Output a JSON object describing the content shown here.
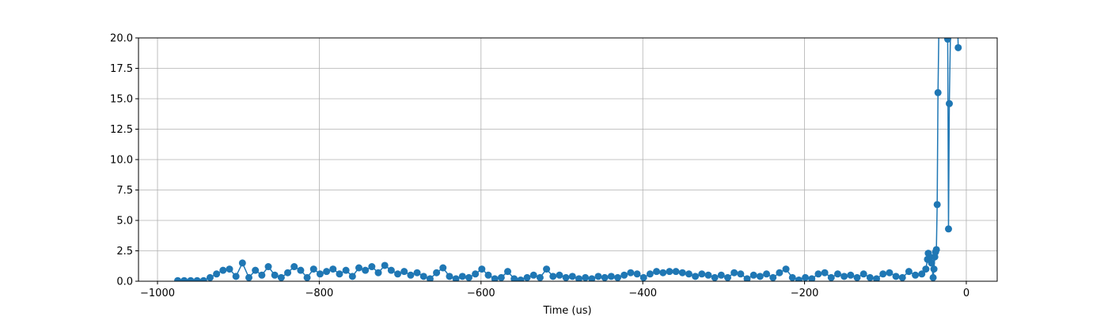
{
  "chart_data": {
    "type": "line",
    "xlabel": "Time (us)",
    "x": [
      -975,
      -967,
      -959,
      -951,
      -943,
      -935,
      -927,
      -919,
      -911,
      -903,
      -895,
      -887,
      -879,
      -871,
      -863,
      -855,
      -847,
      -839,
      -831,
      -823,
      -815,
      -807,
      -799,
      -791,
      -783,
      -775,
      -767,
      -759,
      -751,
      -743,
      -735,
      -727,
      -719,
      -711,
      -703,
      -695,
      -687,
      -679,
      -671,
      -663,
      -655,
      -647,
      -639,
      -631,
      -623,
      -615,
      -607,
      -599,
      -591,
      -583,
      -575,
      -567,
      -559,
      -551,
      -543,
      -535,
      -527,
      -519,
      -511,
      -503,
      -495,
      -487,
      -479,
      -471,
      -463,
      -455,
      -447,
      -439,
      -431,
      -423,
      -415,
      -407,
      -399,
      -391,
      -383,
      -375,
      -367,
      -359,
      -351,
      -343,
      -335,
      -327,
      -319,
      -311,
      -303,
      -295,
      -287,
      -279,
      -271,
      -263,
      -255,
      -247,
      -239,
      -231,
      -223,
      -215,
      -207,
      -199,
      -191,
      -183,
      -175,
      -167,
      -159,
      -151,
      -143,
      -135,
      -127,
      -119,
      -111,
      -103,
      -95,
      -87,
      -79,
      -71,
      -63,
      -55,
      -50,
      -48,
      -47,
      -45,
      -43,
      -41,
      -40,
      -39,
      -38,
      -37,
      -36,
      -35,
      -31,
      -23,
      -22,
      -21,
      -16,
      -10
    ],
    "series": [
      {
        "color": "#1f77b4",
        "values": [
          0.05,
          0.05,
          0.05,
          0.05,
          0.05,
          0.3,
          0.6,
          0.9,
          1.0,
          0.4,
          1.5,
          0.3,
          0.9,
          0.5,
          1.2,
          0.5,
          0.3,
          0.7,
          1.2,
          0.9,
          0.3,
          1.0,
          0.6,
          0.8,
          1.0,
          0.6,
          0.9,
          0.4,
          1.1,
          0.9,
          1.2,
          0.7,
          1.3,
          0.9,
          0.6,
          0.8,
          0.5,
          0.7,
          0.4,
          0.2,
          0.7,
          1.1,
          0.4,
          0.2,
          0.4,
          0.3,
          0.6,
          1.0,
          0.5,
          0.2,
          0.3,
          0.8,
          0.2,
          0.1,
          0.3,
          0.5,
          0.3,
          1.0,
          0.4,
          0.5,
          0.3,
          0.4,
          0.2,
          0.3,
          0.2,
          0.4,
          0.3,
          0.4,
          0.3,
          0.5,
          0.7,
          0.6,
          0.3,
          0.6,
          0.8,
          0.7,
          0.8,
          0.8,
          0.7,
          0.6,
          0.4,
          0.6,
          0.5,
          0.3,
          0.5,
          0.3,
          0.7,
          0.6,
          0.2,
          0.5,
          0.4,
          0.6,
          0.3,
          0.7,
          1.0,
          0.3,
          0.1,
          0.3,
          0.2,
          0.6,
          0.7,
          0.3,
          0.6,
          0.4,
          0.5,
          0.3,
          0.6,
          0.3,
          0.2,
          0.6,
          0.7,
          0.4,
          0.3,
          0.8,
          0.5,
          0.6,
          1.0,
          1.8,
          2.3,
          2.0,
          1.5,
          0.3,
          1.0,
          2.0,
          2.4,
          2.6,
          6.3,
          15.5,
          35,
          19.9,
          4.3,
          14.6,
          35,
          19.2
        ]
      }
    ],
    "xlim": [
      -1023.5,
      38.2
    ],
    "ylim": [
      0,
      20
    ],
    "xticks": [
      {
        "value": -1000,
        "label": "−1000"
      },
      {
        "value": -800,
        "label": "−800"
      },
      {
        "value": -600,
        "label": "−600"
      },
      {
        "value": -400,
        "label": "−400"
      },
      {
        "value": -200,
        "label": "−200"
      },
      0
    ],
    "yticks": [
      {
        "value": 0,
        "label": "0.0"
      },
      2.5,
      {
        "value": 5,
        "label": "5.0"
      },
      7.5,
      {
        "value": 10,
        "label": "10.0"
      },
      12.5,
      {
        "value": 15,
        "label": "15.0"
      },
      17.5,
      {
        "value": 20,
        "label": "20.0"
      }
    ],
    "grid": true
  }
}
